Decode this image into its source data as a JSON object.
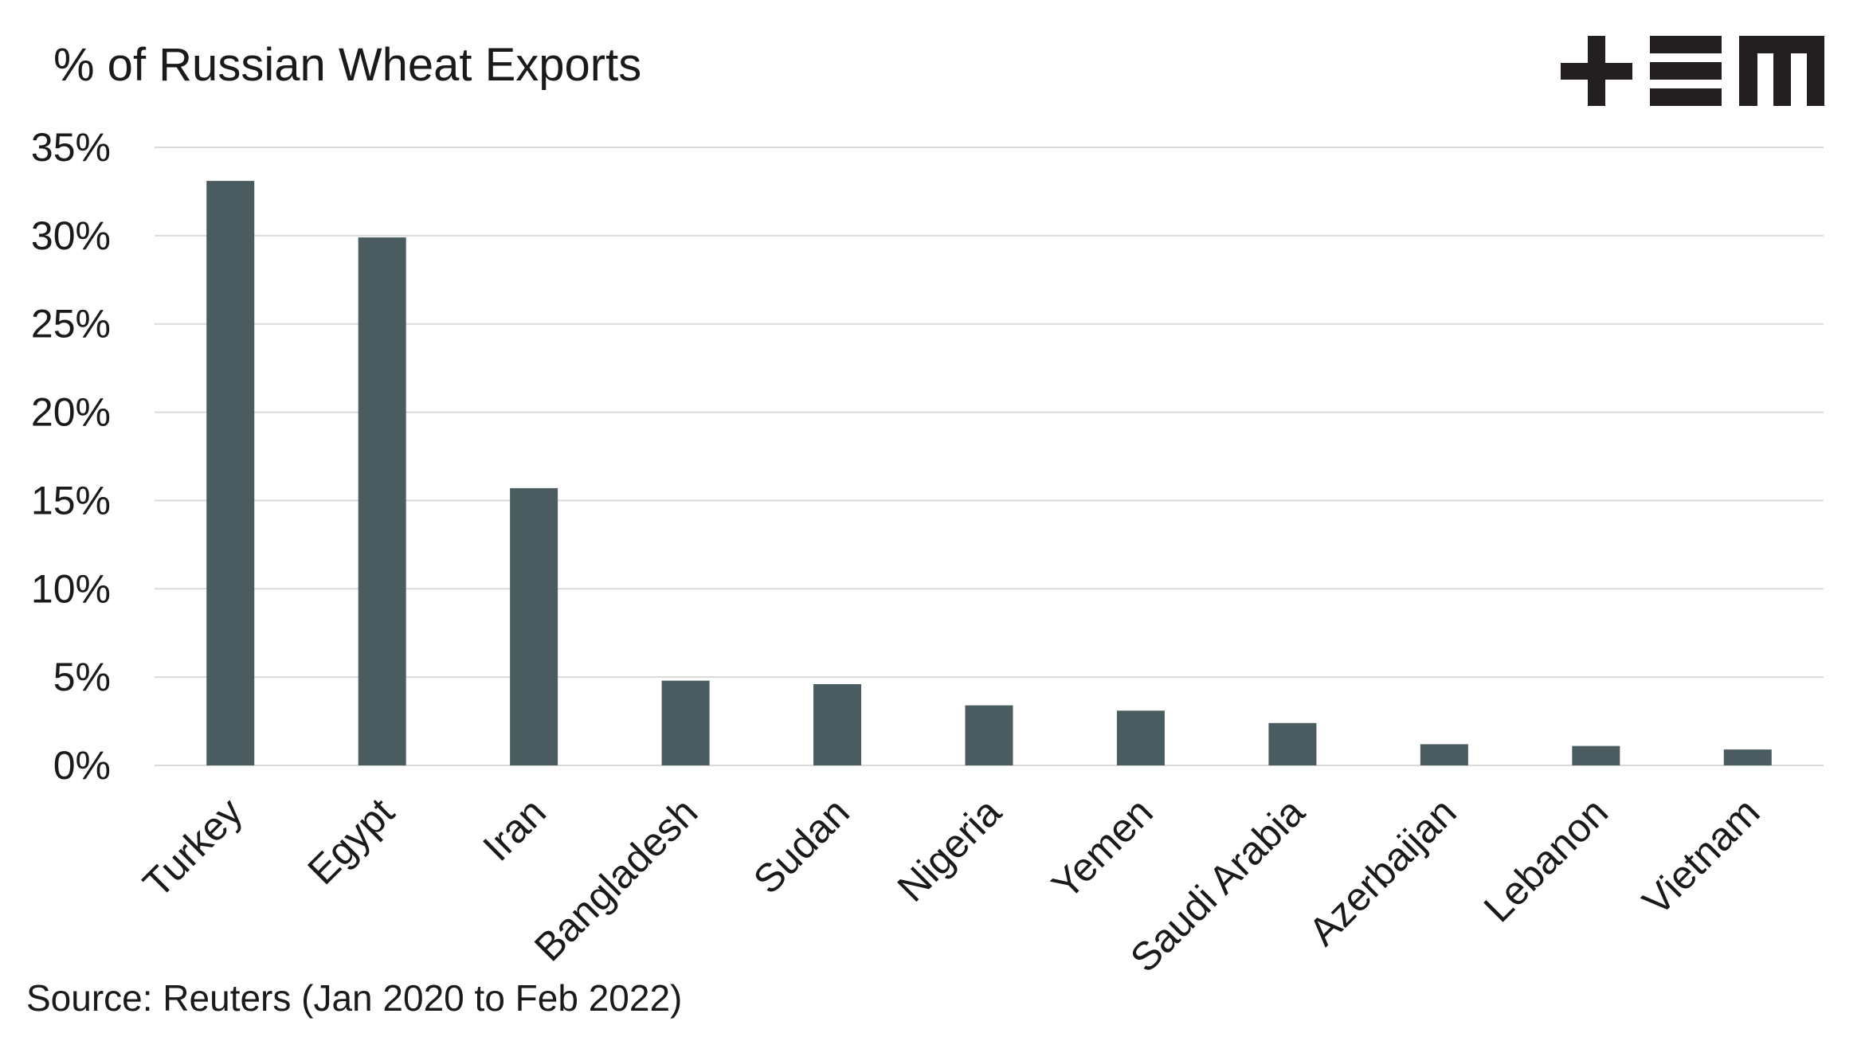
{
  "chart_data": {
    "type": "bar",
    "title": "% of Russian Wheat Exports",
    "source": "Source: Reuters (Jan 2020 to Feb 2022)",
    "categories": [
      "Turkey",
      "Egypt",
      "Iran",
      "Bangladesh",
      "Sudan",
      "Nigeria",
      "Yemen",
      "Saudi Arabia",
      "Azerbaijan",
      "Lebanon",
      "Vietnam"
    ],
    "values": [
      33.1,
      29.9,
      15.7,
      4.8,
      4.6,
      3.4,
      3.1,
      2.4,
      1.2,
      1.1,
      0.9
    ],
    "unit": "%",
    "ylim": [
      0,
      35
    ],
    "yticks": [
      0,
      5,
      10,
      15,
      20,
      25,
      30,
      35
    ],
    "ytick_labels": [
      "0%",
      "5%",
      "10%",
      "15%",
      "20%",
      "25%",
      "30%",
      "35%"
    ],
    "grid": true,
    "legend": "none",
    "bar_color": "#4a5c5f",
    "grid_color": "#d9d9d9"
  },
  "logo": {
    "text": "+EM"
  }
}
